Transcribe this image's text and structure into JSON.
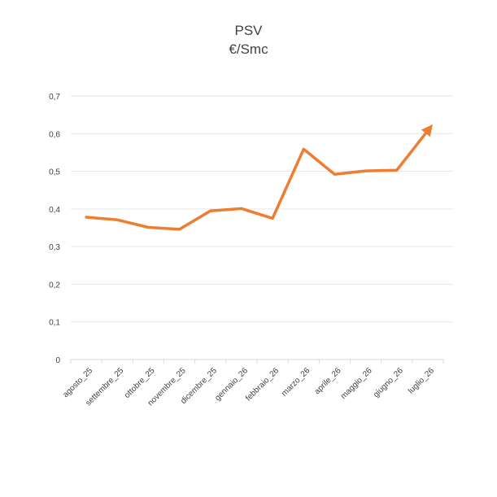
{
  "chart_data": {
    "type": "line",
    "title": "PSV",
    "subtitle": "€/Smc",
    "categories": [
      "agosto_25",
      "settembre_25",
      "ottobre_25",
      "novembre_25",
      "dicembre_25",
      "gennaio_26",
      "febbraio_26",
      "marzo_26",
      "aprile_26",
      "maggio_26",
      "giugno_26",
      "luglio_26"
    ],
    "series": [
      {
        "values": [
          0.378,
          0.371,
          0.351,
          0.346,
          0.395,
          0.401,
          0.375,
          0.559,
          0.492,
          0.501,
          0.503,
          0.608
        ]
      }
    ],
    "ylim": [
      0,
      0.7
    ],
    "yticks": [
      "0",
      "0,1",
      "0,2",
      "0,3",
      "0,4",
      "0,5",
      "0,6",
      "0,7"
    ],
    "grid": true,
    "line_color": "#ed7d31",
    "grid_color": "#e6e6e6",
    "axis_color": "#d9d9d9"
  }
}
